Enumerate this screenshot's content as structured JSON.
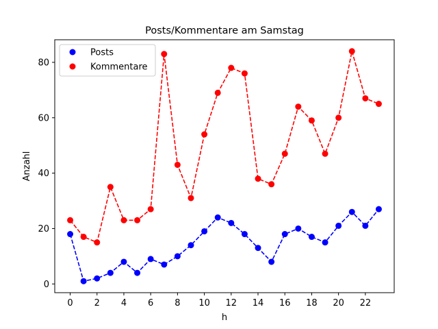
{
  "chart_data": {
    "type": "line",
    "title": "Posts/Kommentare am Samstag",
    "xlabel": "h",
    "ylabel": "Anzahl",
    "x": [
      0,
      1,
      2,
      3,
      4,
      5,
      6,
      7,
      8,
      9,
      10,
      11,
      12,
      13,
      14,
      15,
      16,
      17,
      18,
      19,
      20,
      21,
      22,
      23
    ],
    "xlim": [
      -1.15,
      24.15
    ],
    "ylim": [
      -3.15,
      88.15
    ],
    "xticks": [
      0,
      2,
      4,
      6,
      8,
      10,
      12,
      14,
      16,
      18,
      20,
      22
    ],
    "yticks": [
      0,
      20,
      40,
      60,
      80
    ],
    "grid": false,
    "legend_position": "top-left",
    "series": [
      {
        "name": "Posts",
        "color": "#0000ff",
        "marker": "circle",
        "linestyle": "dashed",
        "values": [
          18,
          1,
          2,
          4,
          8,
          4,
          9,
          7,
          10,
          14,
          19,
          24,
          22,
          18,
          13,
          8,
          18,
          20,
          17,
          15,
          21,
          26,
          21,
          27
        ]
      },
      {
        "name": "Kommentare",
        "color": "#ff0000",
        "marker": "circle",
        "linestyle": "dashed",
        "values": [
          23,
          17,
          15,
          35,
          23,
          23,
          27,
          83,
          43,
          31,
          54,
          69,
          78,
          76,
          38,
          36,
          47,
          64,
          59,
          47,
          60,
          84,
          67,
          65
        ]
      }
    ]
  }
}
